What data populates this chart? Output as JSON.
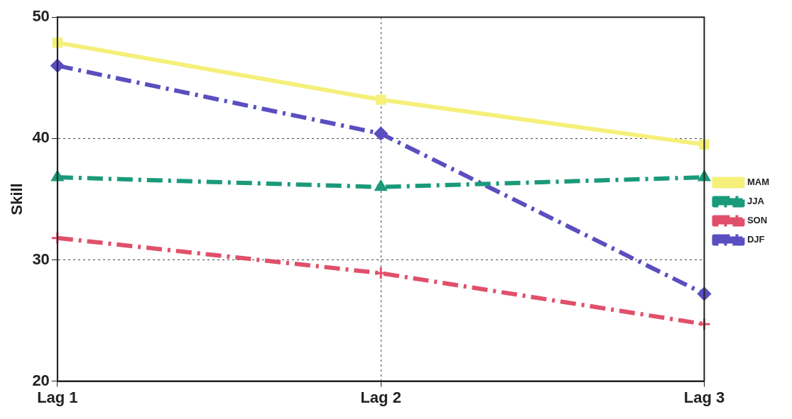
{
  "chart_data": {
    "type": "line",
    "ylabel": "Skill",
    "categories": [
      "Lag 1",
      "Lag 2",
      "Lag 3"
    ],
    "series": [
      {
        "name": "MAM",
        "color": "#f4f07a",
        "values": [
          47.9,
          43.2,
          39.5
        ],
        "marker": "square",
        "line_style": "solid"
      },
      {
        "name": "JJA",
        "color": "#1a9a7a",
        "values": [
          36.8,
          36.0,
          36.8
        ],
        "marker": "triangle",
        "line_style": "dashed"
      },
      {
        "name": "SON",
        "color": "#e0506a",
        "values": [
          31.8,
          28.9,
          24.7
        ],
        "marker": "cross",
        "line_style": "dashed"
      },
      {
        "name": "DJF",
        "color": "#5a4ec0",
        "values": [
          46.0,
          40.4,
          27.2
        ],
        "marker": "diamond",
        "line_style": "dashed"
      }
    ],
    "ylim": [
      20,
      50
    ],
    "yticks": [
      20,
      30,
      40,
      50
    ],
    "grid": true,
    "legend": "right"
  }
}
